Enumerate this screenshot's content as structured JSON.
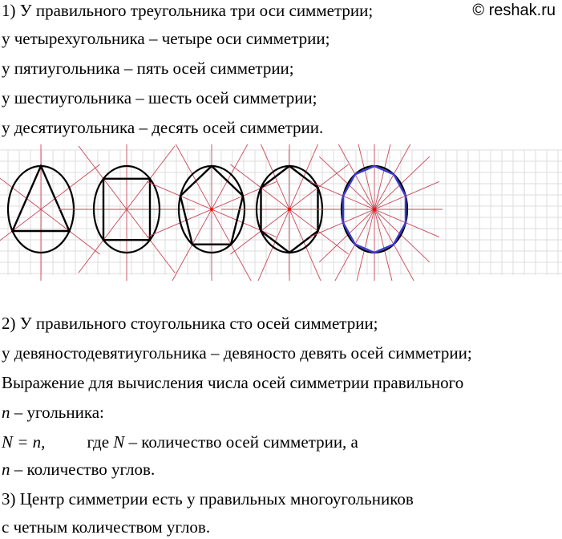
{
  "watermark": "© reshak.ru",
  "part1": {
    "lines": [
      "1) У правильного треугольника три оси симметрии;",
      "у четырехугольника – четыре оси симметрии;",
      "у пятиугольника – пять осей симметрии;",
      "у шестиугольника – шесть осей симметрии;",
      "у десятиугольника – десять осей симметрии."
    ]
  },
  "figures": {
    "polygons": [
      3,
      4,
      5,
      6,
      10
    ],
    "colors": {
      "circle": "#000000",
      "polygon": "#000000",
      "decagon": "#3b3bd0",
      "axes": "#c8485a",
      "grid": "#dddddd",
      "center": "#ff0000"
    }
  },
  "part2": {
    "line1": "2) У правильного стоугольника сто осей симметрии;",
    "line2": "у девяностодевятиугольника – девяносто девять осей симметрии;",
    "line3": "Выражение для вычисления числа осей симметрии правильного",
    "line4_var": "n",
    "line4_text": " – угольника:",
    "formula": "N = n,",
    "where": "где ",
    "where_var": "N",
    "where_text": " – количество осей симметрии, а",
    "line6_var": "n",
    "line6_text": " – количество углов."
  },
  "part3": {
    "line1": "3) Центр симметрии есть у правильных многоугольников",
    "line2": "с четным количеством углов."
  }
}
